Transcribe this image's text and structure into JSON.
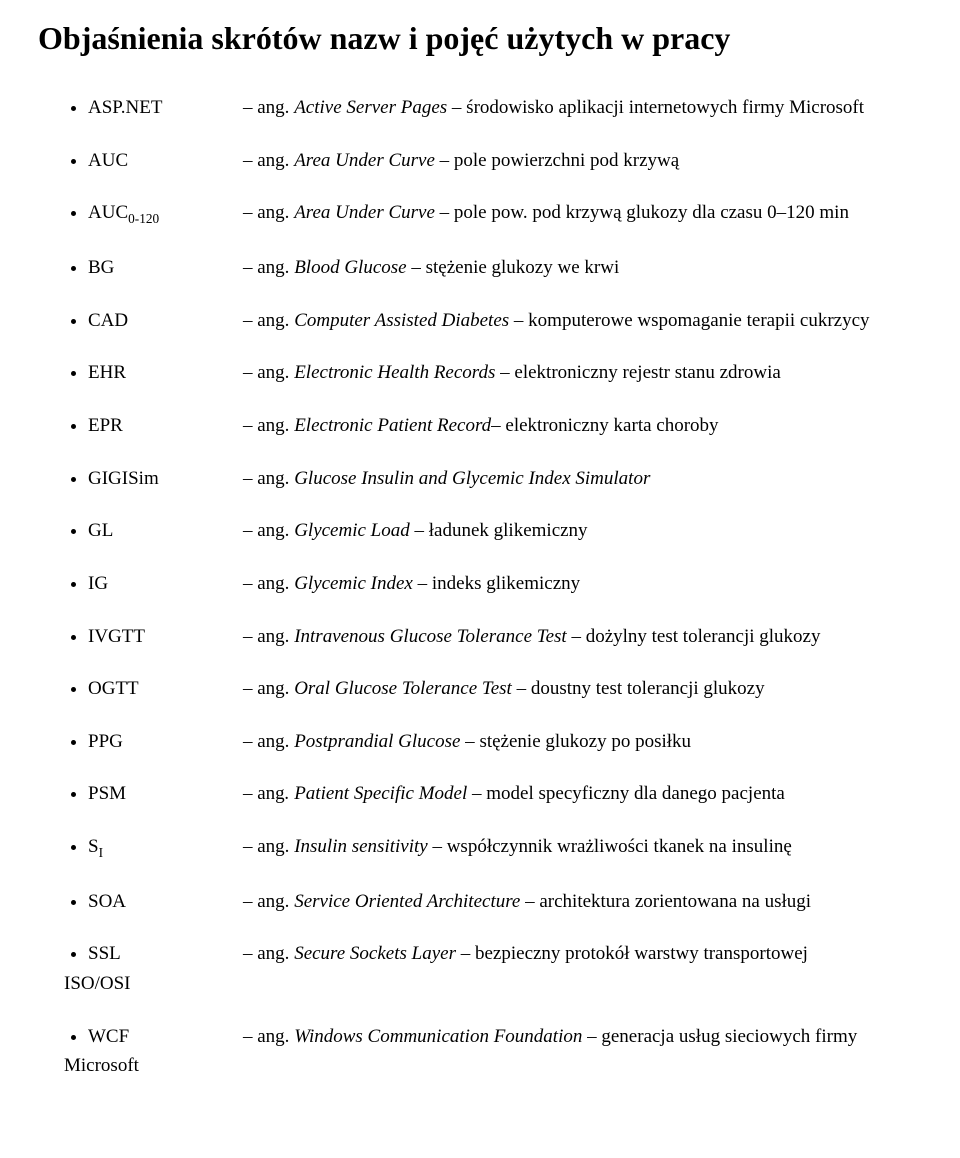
{
  "title": "Objaśnienia skrótów nazw i pojęć użytych w pracy",
  "items": [
    {
      "abbr": "ASP.NET",
      "def_prefix": "– ang. ",
      "def_italic": "Active Server Pages",
      "def_suffix": " – środowisko aplikacji internetowych firmy Microsoft"
    },
    {
      "abbr": "AUC",
      "def_prefix": "– ang. ",
      "def_italic": "Area Under Curve",
      "def_suffix": " – pole powierzchni pod krzywą"
    },
    {
      "abbr_html": "AUC<span class=\"sub\">0-120</span>",
      "def_prefix": "– ang. ",
      "def_italic": "Area Under Curve",
      "def_suffix": " – pole pow. pod krzywą glukozy dla czasu 0–120 min"
    },
    {
      "abbr": "BG",
      "def_prefix": "– ang. ",
      "def_italic": "Blood Glucose",
      "def_suffix": " – stężenie glukozy we krwi"
    },
    {
      "abbr": "CAD",
      "def_prefix": "– ang. ",
      "def_italic": "Computer Assisted Diabetes",
      "def_suffix": " – komputerowe wspomaganie terapii cukrzycy"
    },
    {
      "abbr": "EHR",
      "def_prefix": "– ang. ",
      "def_italic": "Electronic Health Records",
      "def_suffix": " – elektroniczny rejestr stanu zdrowia"
    },
    {
      "abbr": "EPR",
      "def_prefix": "– ang. ",
      "def_italic": "Electronic Patient Record",
      "def_suffix": "– elektroniczny karta choroby"
    },
    {
      "abbr": "GIGISim",
      "def_prefix": "– ang. ",
      "def_italic": "Glucose Insulin and Glycemic Index Simulator",
      "def_suffix": ""
    },
    {
      "abbr": "GL",
      "def_prefix": "– ang. ",
      "def_italic": "Glycemic Load",
      "def_suffix": " – ładunek glikemiczny"
    },
    {
      "abbr": "IG",
      "def_prefix": "– ang. ",
      "def_italic": "Glycemic Index",
      "def_suffix": " – indeks glikemiczny"
    },
    {
      "abbr": "IVGTT",
      "def_prefix": "– ang. ",
      "def_italic": "Intravenous Glucose Tolerance Test",
      "def_suffix": " – dożylny test tolerancji glukozy"
    },
    {
      "abbr": "OGTT",
      "def_prefix": "– ang. ",
      "def_italic": "Oral Glucose Tolerance Test – ",
      "def_suffix": "doustny test tolerancji glukozy"
    },
    {
      "abbr": "PPG",
      "def_prefix": "– ang. ",
      "def_italic": "Postprandial Glucose – ",
      "def_suffix": "stężenie glukozy po posiłku"
    },
    {
      "abbr": "PSM",
      "def_prefix": "– ang",
      "def_italic": ". Patient Specific Model – ",
      "def_suffix": "model specyficzny dla danego pacjenta"
    },
    {
      "abbr_html": "S<span class=\"sub\">I</span>",
      "def_prefix": "– ang. ",
      "def_italic": "Insulin sensitivity – ",
      "def_suffix": "współczynnik wrażliwości tkanek na insulinę"
    },
    {
      "abbr": "SOA",
      "def_prefix": "– ang. ",
      "def_italic": "Service Oriented Architecture – ",
      "def_suffix": "architektura zorientowana na usługi"
    },
    {
      "abbr": "SSL",
      "second_line": "ISO/OSI",
      "justify": true,
      "def_prefix": "– ang. ",
      "def_italic": "Secure Sockets Layer – ",
      "def_suffix": "bezpieczny protokół warstwy transportowej"
    },
    {
      "abbr": "WCF",
      "second_line": "Microsoft",
      "def_prefix": "– ang. ",
      "def_italic": "Windows Communication Foundation – ",
      "def_suffix": "generacja usług sieciowych firmy"
    }
  ]
}
